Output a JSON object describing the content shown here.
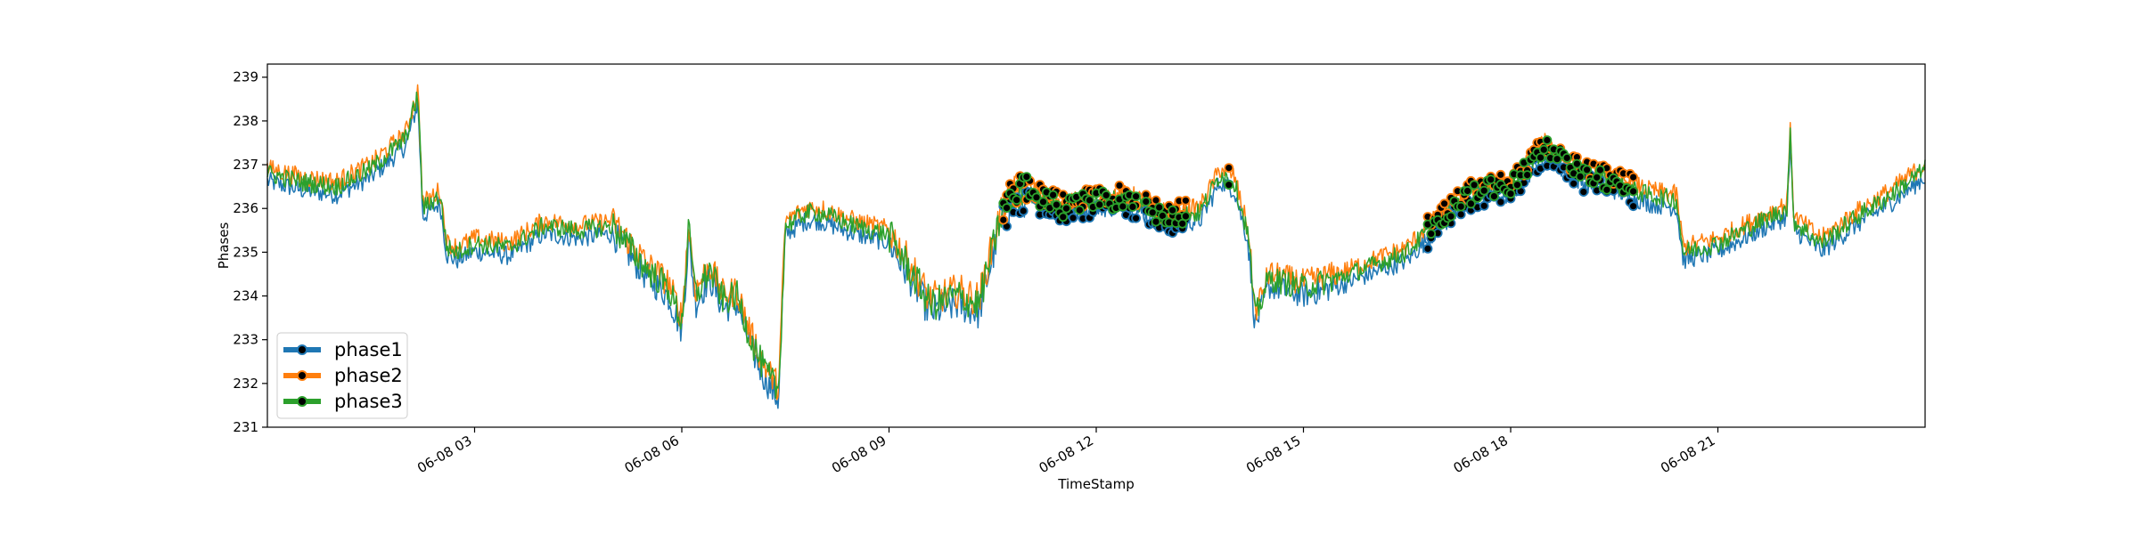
{
  "chart_data": {
    "type": "line",
    "title": "",
    "xlabel": "TimeStamp",
    "ylabel": "Phases",
    "x_range": [
      "06-08 00:00",
      "06-08 24:00"
    ],
    "ylim": [
      231,
      239.3
    ],
    "grid": false,
    "legend_position": "lower-left",
    "x_ticks": [
      {
        "hour": 3,
        "label": "06-08 03"
      },
      {
        "hour": 6,
        "label": "06-08 06"
      },
      {
        "hour": 9,
        "label": "06-08 09"
      },
      {
        "hour": 12,
        "label": "06-08 12"
      },
      {
        "hour": 15,
        "label": "06-08 15"
      },
      {
        "hour": 18,
        "label": "06-08 18"
      },
      {
        "hour": 21,
        "label": "06-08 21"
      }
    ],
    "y_ticks": [
      {
        "value": 231,
        "label": "231"
      },
      {
        "value": 232,
        "label": "232"
      },
      {
        "value": 233,
        "label": "233"
      },
      {
        "value": 234,
        "label": "234"
      },
      {
        "value": 235,
        "label": "235"
      },
      {
        "value": 236,
        "label": "236"
      },
      {
        "value": 237,
        "label": "237"
      },
      {
        "value": 238,
        "label": "238"
      },
      {
        "value": 239,
        "label": "239"
      }
    ],
    "x_unit": "hours since 06-08 00:00",
    "base_trace": {
      "x": [
        0,
        0.5,
        1.0,
        1.5,
        2.0,
        2.18,
        2.25,
        2.5,
        2.6,
        2.75,
        3.0,
        3.5,
        4.0,
        4.5,
        5.0,
        5.5,
        5.8,
        6.0,
        6.1,
        6.2,
        6.4,
        6.6,
        6.8,
        7.0,
        7.2,
        7.4,
        7.5,
        7.8,
        8.0,
        8.5,
        9.0,
        9.3,
        9.6,
        10.0,
        10.3,
        10.6,
        10.7,
        11.0,
        11.5,
        12.0,
        12.5,
        13.0,
        13.5,
        13.8,
        14.0,
        14.2,
        14.3,
        14.5,
        15.0,
        15.5,
        16.0,
        16.5,
        17.0,
        17.5,
        18.0,
        18.5,
        19.0,
        19.5,
        20.0,
        20.4,
        20.5,
        21.0,
        21.5,
        22.0,
        22.05,
        22.1,
        22.5,
        23.0,
        23.5,
        24.0
      ],
      "y": [
        236.8,
        236.6,
        236.5,
        236.9,
        237.6,
        238.6,
        236.0,
        236.3,
        235.1,
        235.0,
        235.2,
        235.1,
        235.6,
        235.5,
        235.6,
        234.6,
        234.2,
        233.4,
        235.5,
        234.0,
        234.6,
        233.9,
        234.0,
        233.0,
        232.3,
        231.8,
        235.6,
        235.9,
        235.9,
        235.6,
        235.4,
        234.6,
        233.8,
        234.0,
        233.8,
        235.7,
        236.1,
        236.4,
        236.0,
        236.2,
        236.2,
        235.8,
        235.9,
        236.8,
        236.6,
        235.4,
        233.5,
        234.4,
        234.2,
        234.4,
        234.7,
        235.0,
        235.8,
        236.4,
        236.5,
        237.4,
        236.8,
        236.6,
        236.3,
        236.2,
        235.0,
        235.2,
        235.6,
        236.0,
        237.7,
        235.7,
        235.2,
        235.8,
        236.3,
        236.9
      ]
    },
    "series": [
      {
        "name": "phase1",
        "color": "#1f77b4",
        "offset": -0.18
      },
      {
        "name": "phase2",
        "color": "#ff7f0e",
        "offset": 0.12
      },
      {
        "name": "phase3",
        "color": "#2ca02c",
        "offset": 0.0
      }
    ],
    "marker_style": {
      "fill": "#000000",
      "shape": "circle"
    },
    "anomaly_segments": [
      {
        "start": 10.65,
        "end": 12.6
      },
      {
        "start": 12.7,
        "end": 13.3
      },
      {
        "start": 13.9,
        "end": 13.95
      },
      {
        "start": 16.8,
        "end": 19.8
      }
    ]
  }
}
